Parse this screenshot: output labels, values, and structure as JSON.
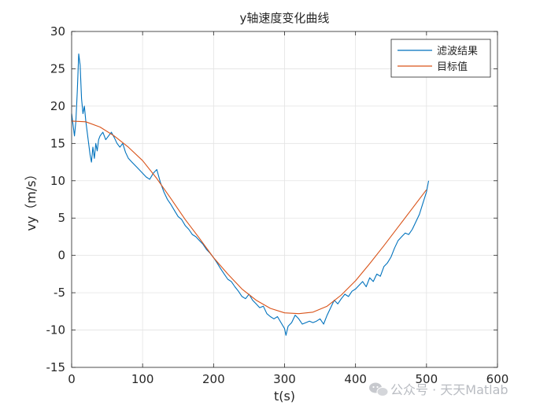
{
  "chart_data": {
    "type": "line",
    "title": "y轴速度变化曲线",
    "xlabel": "t(s)",
    "ylabel": "vy（m/s）",
    "xlim": [
      0,
      600
    ],
    "ylim": [
      -15,
      30
    ],
    "xticks": [
      0,
      100,
      200,
      300,
      400,
      500,
      600
    ],
    "yticks": [
      -15,
      -10,
      -5,
      0,
      5,
      10,
      15,
      20,
      25,
      30
    ],
    "grid": true,
    "legend_position": "top-right",
    "series": [
      {
        "name": "滤波结果",
        "color": "#0072BD",
        "x": [
          0,
          2,
          4,
          6,
          8,
          10,
          12,
          14,
          16,
          18,
          20,
          22,
          24,
          26,
          28,
          30,
          32,
          34,
          36,
          38,
          40,
          44,
          48,
          52,
          56,
          60,
          64,
          68,
          72,
          76,
          80,
          85,
          90,
          95,
          100,
          105,
          110,
          115,
          120,
          125,
          130,
          135,
          140,
          145,
          150,
          155,
          160,
          165,
          170,
          175,
          180,
          185,
          190,
          195,
          200,
          205,
          210,
          215,
          220,
          225,
          230,
          235,
          240,
          245,
          250,
          255,
          260,
          265,
          270,
          275,
          280,
          285,
          290,
          295,
          300,
          302,
          305,
          310,
          315,
          320,
          325,
          330,
          335,
          340,
          345,
          350,
          355,
          360,
          365,
          370,
          375,
          380,
          385,
          390,
          395,
          400,
          405,
          410,
          415,
          420,
          425,
          430,
          435,
          440,
          445,
          450,
          455,
          460,
          465,
          470,
          475,
          480,
          485,
          490,
          495,
          500,
          503
        ],
        "y": [
          19.0,
          17.5,
          16.0,
          18.0,
          22.0,
          27.0,
          25.5,
          21.0,
          19.0,
          20.0,
          18.0,
          16.5,
          15.0,
          13.5,
          12.5,
          14.5,
          13.0,
          15.0,
          14.0,
          15.5,
          16.0,
          16.5,
          15.5,
          16.0,
          16.5,
          15.8,
          15.0,
          14.5,
          15.0,
          13.8,
          13.0,
          12.5,
          12.0,
          11.5,
          11.0,
          10.5,
          10.2,
          11.0,
          11.5,
          9.8,
          8.5,
          7.5,
          6.8,
          6.0,
          5.2,
          4.8,
          4.0,
          3.5,
          2.8,
          2.5,
          2.0,
          1.5,
          0.8,
          0.3,
          -0.3,
          -1.0,
          -1.8,
          -2.5,
          -3.2,
          -3.5,
          -4.2,
          -4.8,
          -5.5,
          -5.8,
          -5.2,
          -6.0,
          -6.5,
          -7.0,
          -6.8,
          -7.8,
          -8.2,
          -8.5,
          -8.2,
          -9.0,
          -9.8,
          -10.7,
          -9.5,
          -9.0,
          -8.0,
          -8.5,
          -9.2,
          -9.0,
          -8.8,
          -9.0,
          -8.8,
          -8.5,
          -9.2,
          -8.0,
          -7.0,
          -6.0,
          -6.5,
          -5.8,
          -5.2,
          -5.5,
          -4.8,
          -4.5,
          -4.0,
          -3.5,
          -4.2,
          -3.0,
          -3.5,
          -2.5,
          -2.8,
          -1.5,
          -1.0,
          -0.2,
          1.0,
          2.0,
          2.5,
          3.0,
          2.8,
          3.5,
          4.5,
          5.5,
          7.0,
          8.5,
          10.0
        ]
      },
      {
        "name": "目标值",
        "color": "#D95319",
        "x": [
          0,
          20,
          40,
          60,
          80,
          100,
          120,
          140,
          160,
          180,
          200,
          220,
          240,
          260,
          280,
          300,
          320,
          340,
          360,
          380,
          400,
          420,
          440,
          460,
          480,
          500
        ],
        "y": [
          18.0,
          17.9,
          17.2,
          16.0,
          14.5,
          12.7,
          10.3,
          7.6,
          4.8,
          2.3,
          -0.3,
          -2.5,
          -4.5,
          -6.0,
          -7.1,
          -7.7,
          -7.8,
          -7.6,
          -6.8,
          -5.3,
          -3.4,
          -1.1,
          1.3,
          3.8,
          6.3,
          8.8
        ]
      }
    ]
  },
  "watermark": {
    "text": "公众号 · 天天Matlab",
    "icon": "wechat-icon"
  }
}
